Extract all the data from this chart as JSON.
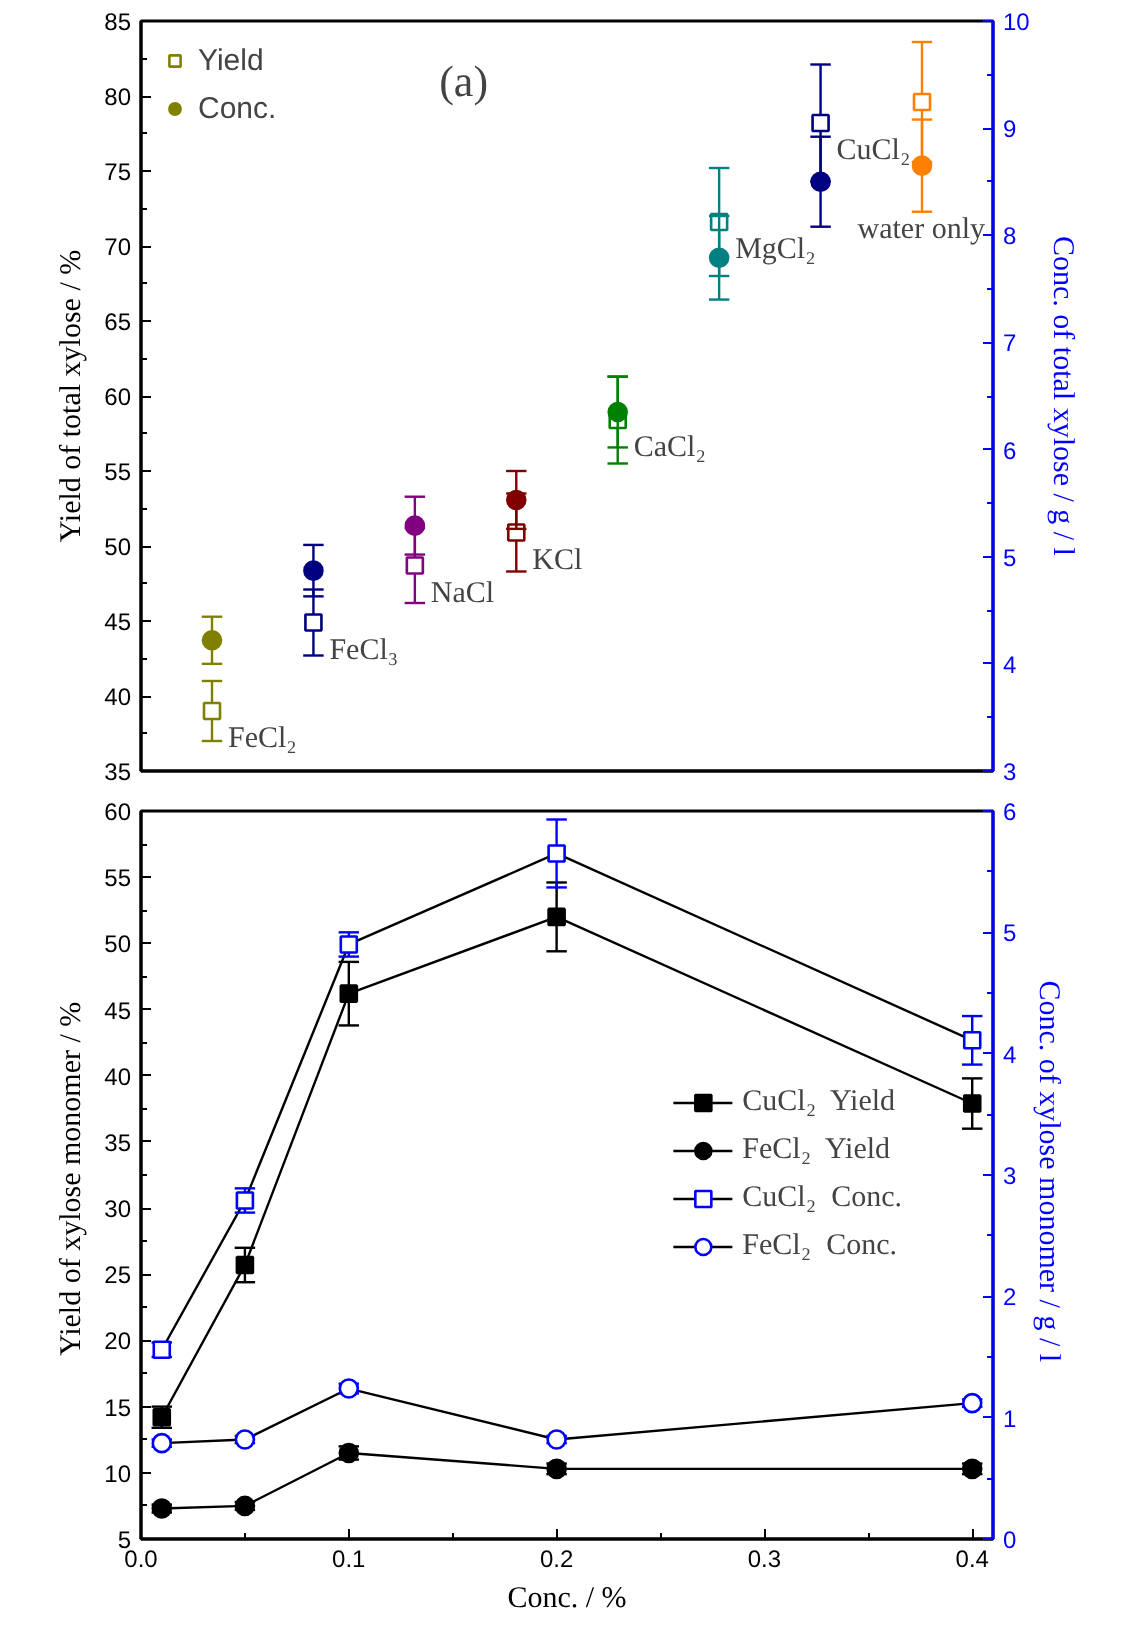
{
  "chart_data": [
    {
      "type": "scatter",
      "categories": [
        null,
        null,
        null,
        null,
        null,
        null,
        null,
        null
      ],
      "ylabel": "Yield of total xylose / %",
      "y2label": "Conc. of total xylose / g / l",
      "ylim": [
        35,
        85
      ],
      "yticks": [
        35,
        40,
        45,
        50,
        55,
        60,
        65,
        70,
        75,
        80,
        85
      ],
      "y2lim": [
        3,
        10
      ],
      "y2ticks": [
        3,
        4,
        5,
        6,
        7,
        8,
        9,
        10
      ],
      "tick_labels": "y",
      "grid": false,
      "legend": "top left",
      "series": [
        {
          "name": "Yield",
          "marker": "square",
          "color": "#808000",
          "colors": [
            "#808000",
            "#000080",
            "#800080",
            "#800000",
            "#008000",
            "#008080",
            "#000080",
            "#ff8000"
          ],
          "values": [
            39.0,
            44.9,
            48.7,
            50.9,
            58.4,
            71.6,
            78.2,
            79.6
          ],
          "errors": [
            2.0,
            2.2,
            2.5,
            2.6,
            2.9,
            3.6,
            3.9,
            4.0
          ]
        },
        {
          "name": "Conc.",
          "marker": "circle",
          "axis": "y2",
          "color": "#808000",
          "colors": [
            "#808000",
            "#000080",
            "#800080",
            "#800000",
            "#008000",
            "#008080",
            "#000080",
            "#ff8000"
          ],
          "values": [
            4.22,
            4.87,
            5.29,
            5.53,
            6.35,
            7.79,
            8.5,
            8.65
          ],
          "errors": [
            0.22,
            0.24,
            0.27,
            0.27,
            0.33,
            0.39,
            0.42,
            0.43
          ]
        }
      ],
      "annotations": [
        "(a)",
        "FeCl₂",
        "FeCl₃",
        "NaCl",
        "KCl",
        "CaCl₂",
        "MgCl₂",
        "CuCl₂",
        "water only"
      ]
    },
    {
      "type": "line",
      "xlabel": "Conc. / %",
      "ylabel": "Yield of  xylose monomer / %",
      "y2label": "Conc. of  xylose monomer / g / l",
      "xlim": [
        0,
        0.41
      ],
      "xticks": [
        {
          "value": 0,
          "label": "0.0"
        },
        0.1,
        0.2,
        0.3,
        0.4
      ],
      "ylim": [
        5,
        60
      ],
      "yticks": [
        5,
        10,
        15,
        20,
        25,
        30,
        35,
        40,
        45,
        50,
        55,
        60
      ],
      "y2lim": [
        0,
        6
      ],
      "y2ticks": [
        0,
        1,
        2,
        3,
        4,
        5,
        6
      ],
      "grid": false,
      "legend": "right",
      "line_style": "solid",
      "x": [
        0.01,
        0.05,
        0.1,
        0.2,
        0.4
      ],
      "series": [
        {
          "name": "CuCl₂  Yield",
          "marker": "square",
          "color": "#000000",
          "values": [
            14.2,
            25.7,
            46.2,
            52.0,
            37.9
          ],
          "errors": [
            0.8,
            1.3,
            2.4,
            2.6,
            1.9
          ]
        },
        {
          "name": "FeCl₂  Yield",
          "marker": "circle",
          "color": "#000000",
          "values": [
            7.3,
            7.5,
            11.5,
            10.3,
            10.3
          ],
          "errors": [
            0.3,
            0.3,
            0.5,
            0.4,
            0.4
          ]
        },
        {
          "name": "CuCl₂  Conc.",
          "marker": "square",
          "axis": "y2",
          "color": "#0000ff",
          "values": [
            1.56,
            2.79,
            4.9,
            5.65,
            4.11
          ],
          "errors": [
            0.06,
            0.1,
            0.1,
            0.28,
            0.2
          ]
        },
        {
          "name": "FeCl₂  Conc.",
          "marker": "circle",
          "axis": "y2",
          "color": "#0000ff",
          "values": [
            0.79,
            0.82,
            1.24,
            0.82,
            1.12
          ],
          "errors": [
            0.03,
            0.03,
            0.04,
            0.03,
            0.03
          ]
        }
      ]
    }
  ]
}
